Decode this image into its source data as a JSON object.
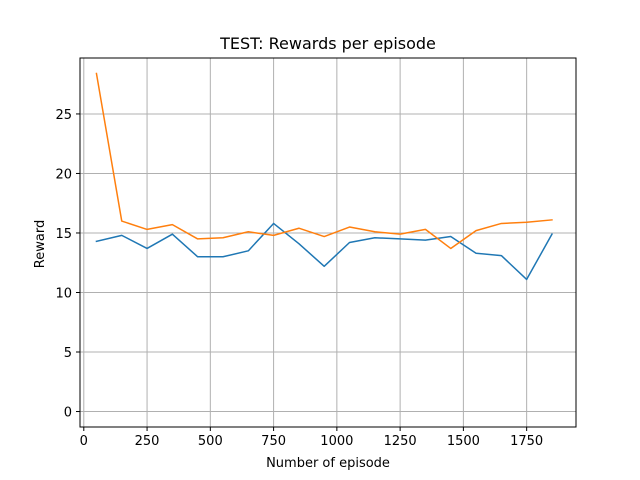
{
  "chart_data": {
    "type": "line",
    "title": "TEST: Rewards per episode",
    "xlabel": "Number of episode",
    "ylabel": "Reward",
    "xlim": [
      -15,
      1945
    ],
    "ylim": [
      -1.3,
      29.7
    ],
    "xticks": [
      0,
      250,
      500,
      750,
      1000,
      1250,
      1500,
      1750
    ],
    "xtick_labels": [
      "0",
      "250",
      "500",
      "750",
      "1000",
      "1250",
      "1500",
      "1750"
    ],
    "yticks": [
      0,
      5,
      10,
      15,
      20,
      25
    ],
    "ytick_labels": [
      "0",
      "5",
      "10",
      "15",
      "20",
      "25"
    ],
    "grid": true,
    "legend": false,
    "x": [
      50,
      150,
      250,
      350,
      450,
      550,
      650,
      750,
      850,
      950,
      1050,
      1150,
      1250,
      1350,
      1450,
      1550,
      1650,
      1750,
      1850
    ],
    "series": [
      {
        "color": "#1f77b4",
        "values": [
          14.3,
          14.8,
          13.7,
          14.9,
          13.0,
          13.0,
          13.5,
          15.8,
          14.1,
          12.2,
          14.2,
          14.6,
          14.5,
          14.4,
          14.7,
          13.3,
          13.1,
          11.1,
          14.9
        ]
      },
      {
        "color": "#ff7f0e",
        "values": [
          28.4,
          16.0,
          15.3,
          15.7,
          14.5,
          14.6,
          15.1,
          14.8,
          15.4,
          14.7,
          15.5,
          15.1,
          14.9,
          15.3,
          13.7,
          15.2,
          15.8,
          15.9,
          16.1
        ]
      }
    ]
  }
}
